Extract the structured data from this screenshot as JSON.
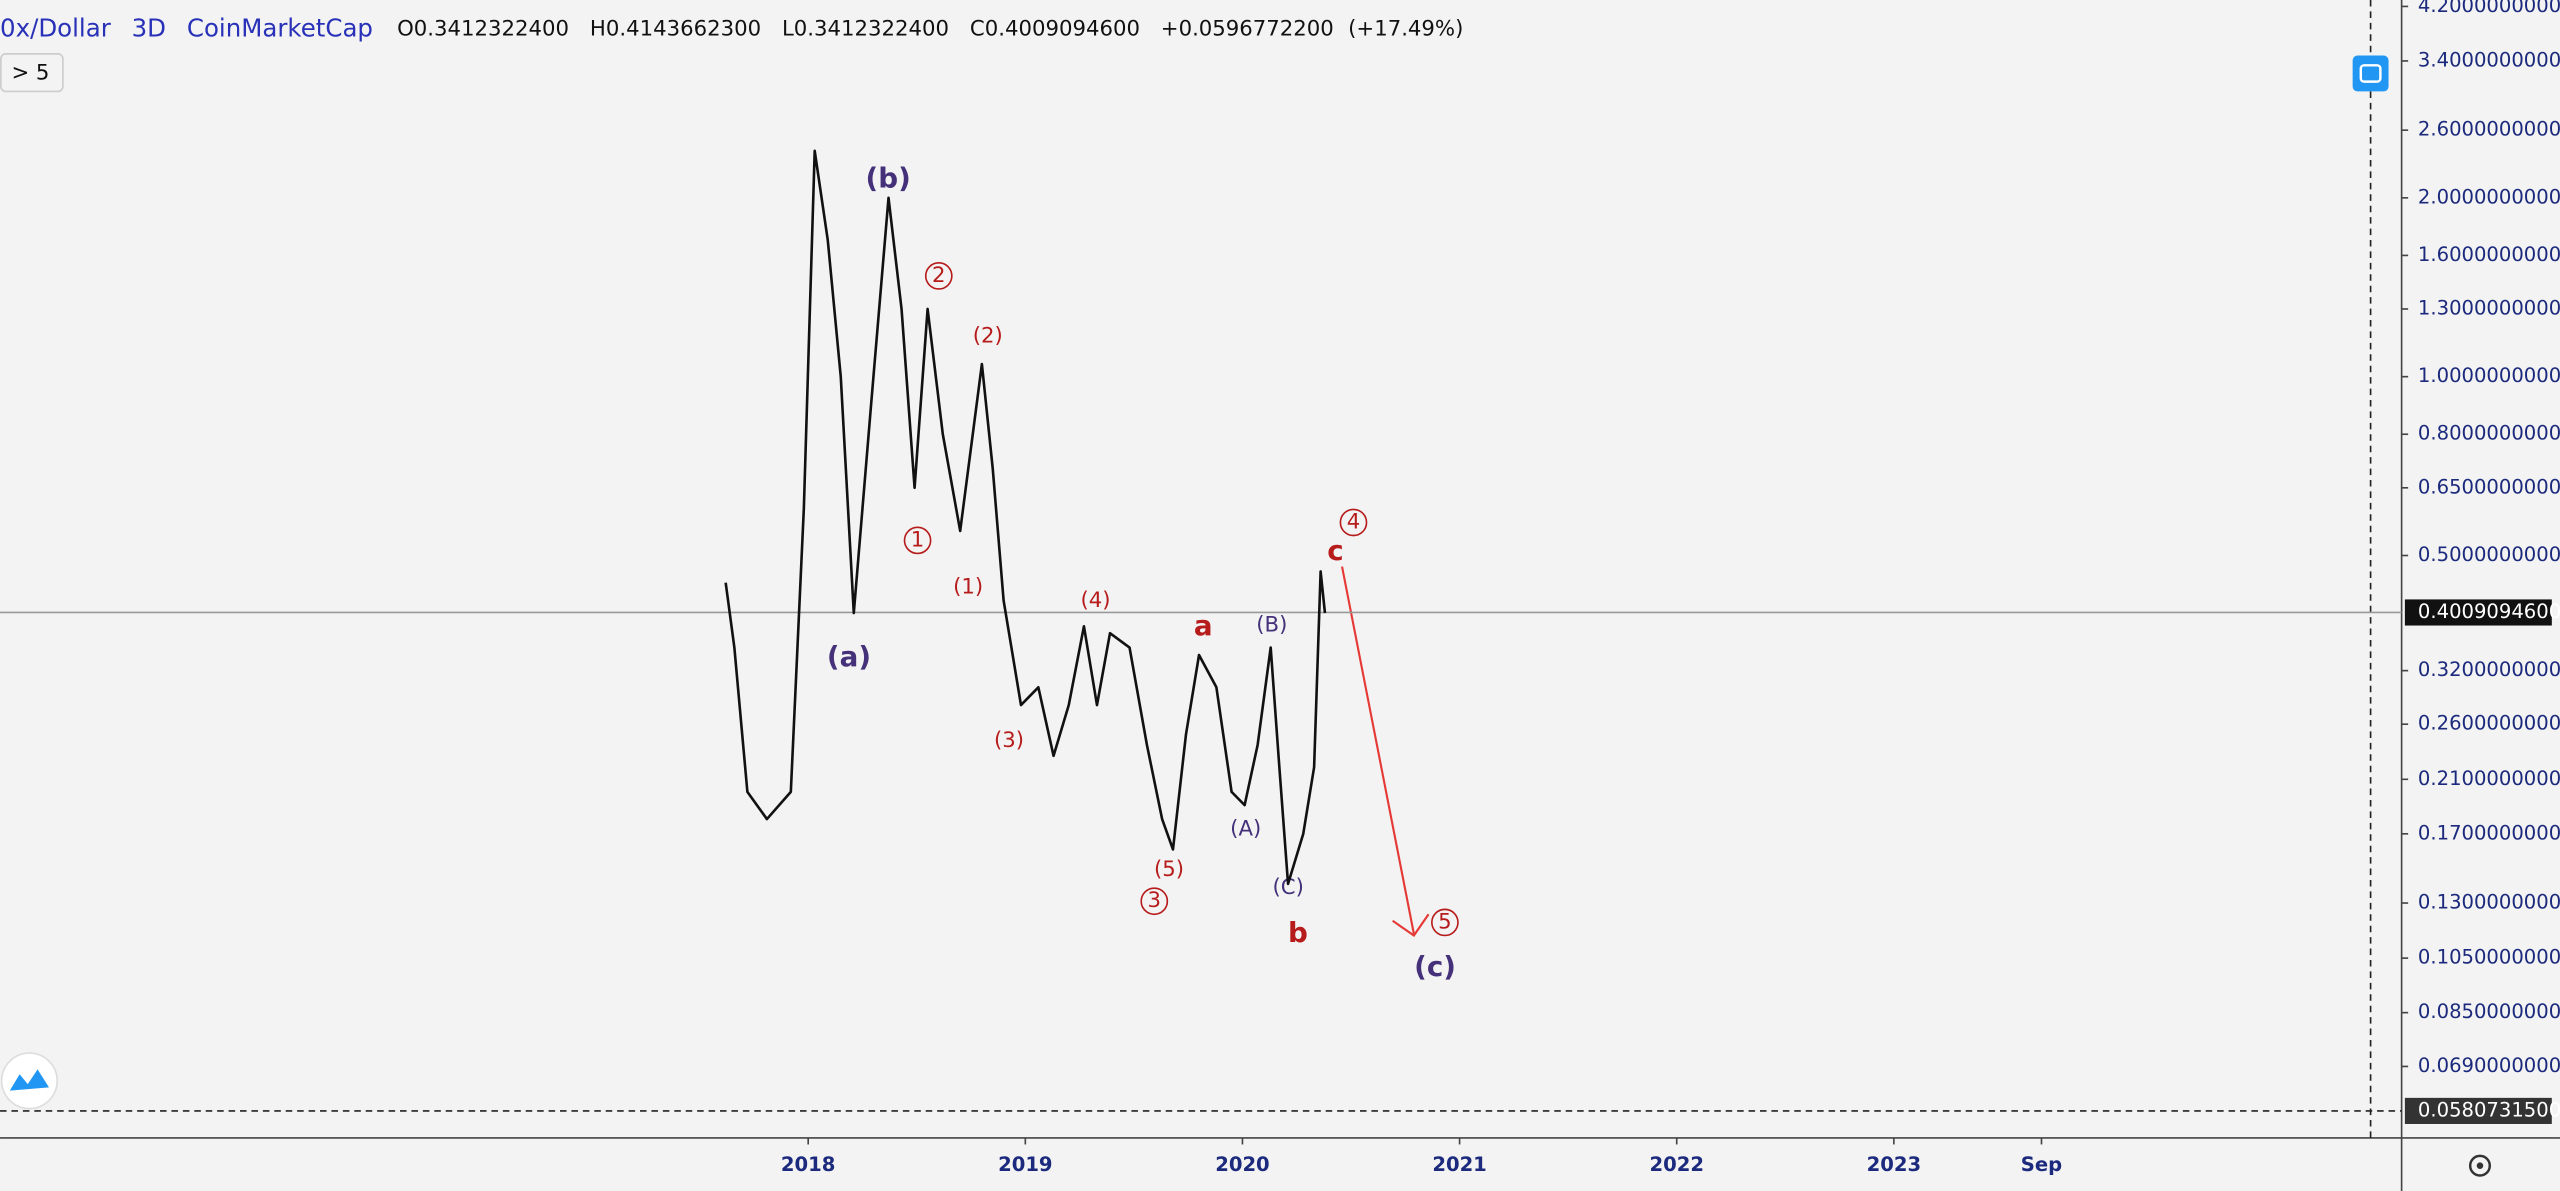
{
  "header": {
    "symbol": "0x/Dollar",
    "interval": "3D",
    "source": "CoinMarketCap",
    "ohlc": [
      {
        "label": "O",
        "value": "0.3412322400"
      },
      {
        "label": "H",
        "value": "0.4143662300"
      },
      {
        "label": "L",
        "value": "0.3412322400"
      },
      {
        "label": "C",
        "value": "0.4009094600"
      }
    ],
    "change": "+0.0596772200",
    "change_percent": "(+17.49%)"
  },
  "indicator_button": {
    "chevron": ">",
    "count": "5"
  },
  "chart_data": {
    "type": "line",
    "log_scale": true,
    "grid": false,
    "color": "#111111",
    "x": [
      2017.62,
      2017.66,
      2017.72,
      2017.81,
      2017.92,
      2017.98,
      2018.03,
      2018.09,
      2018.15,
      2018.21,
      2018.29,
      2018.37,
      2018.43,
      2018.49,
      2018.55,
      2018.62,
      2018.7,
      2018.8,
      2018.85,
      2018.9,
      2018.98,
      2019.06,
      2019.13,
      2019.2,
      2019.27,
      2019.33,
      2019.39,
      2019.48,
      2019.56,
      2019.63,
      2019.68,
      2019.74,
      2019.8,
      2019.88,
      2019.95,
      2020.01,
      2020.07,
      2020.13,
      2020.17,
      2020.21,
      2020.28,
      2020.33,
      2020.36,
      2020.38
    ],
    "values": [
      0.45,
      0.35,
      0.2,
      0.18,
      0.2,
      0.6,
      2.4,
      1.7,
      1.0,
      0.4,
      0.9,
      2.0,
      1.3,
      0.65,
      1.3,
      0.8,
      0.55,
      1.05,
      0.7,
      0.42,
      0.28,
      0.3,
      0.23,
      0.28,
      0.38,
      0.28,
      0.37,
      0.35,
      0.24,
      0.18,
      0.16,
      0.25,
      0.34,
      0.3,
      0.2,
      0.19,
      0.24,
      0.35,
      0.22,
      0.14,
      0.17,
      0.22,
      0.47,
      0.4
    ],
    "xlim": [
      2014.278,
      2025.331
    ],
    "ylim": [
      0.0523,
      4.306
    ],
    "xticks": [
      {
        "value": 2018,
        "label": "2018"
      },
      {
        "value": 2019,
        "label": "2019"
      },
      {
        "value": 2020,
        "label": "2020"
      },
      {
        "value": 2021,
        "label": "2021"
      },
      {
        "value": 2022,
        "label": "2022"
      },
      {
        "value": 2023,
        "label": "2023"
      },
      {
        "value": 2023.68,
        "label": "Sep"
      }
    ],
    "yticks": [
      {
        "value": 4.2,
        "label": "4.2000000000"
      },
      {
        "value": 3.4,
        "label": "3.4000000000"
      },
      {
        "value": 2.6,
        "label": "2.6000000000"
      },
      {
        "value": 2.0,
        "label": "2.0000000000"
      },
      {
        "value": 1.6,
        "label": "1.6000000000"
      },
      {
        "value": 1.3,
        "label": "1.3000000000"
      },
      {
        "value": 1.0,
        "label": "1.0000000000"
      },
      {
        "value": 0.8,
        "label": "0.8000000000"
      },
      {
        "value": 0.65,
        "label": "0.6500000000"
      },
      {
        "value": 0.5,
        "label": "0.5000000000"
      },
      {
        "value": 0.32,
        "label": "0.3200000000"
      },
      {
        "value": 0.26,
        "label": "0.2600000000"
      },
      {
        "value": 0.21,
        "label": "0.2100000000"
      },
      {
        "value": 0.17,
        "label": "0.1700000000"
      },
      {
        "value": 0.13,
        "label": "0.1300000000"
      },
      {
        "value": 0.105,
        "label": "0.1050000000"
      },
      {
        "value": 0.085,
        "label": "0.0850000000"
      },
      {
        "value": 0.069,
        "label": "0.0690000000"
      }
    ],
    "price_lines": [
      {
        "value": 0.40090946,
        "label": "0.4009094600"
      },
      {
        "value": 0.05807315,
        "label": "0.0580731500"
      }
    ]
  },
  "annotations": [
    "(b)",
    "(a)",
    "2",
    "(2)",
    "1",
    "(1)",
    "(4)",
    "(3)",
    "(5)",
    "3",
    "a",
    "(B)",
    "(A)",
    "(C)",
    "b",
    "c",
    "4",
    "5",
    "(c)"
  ]
}
